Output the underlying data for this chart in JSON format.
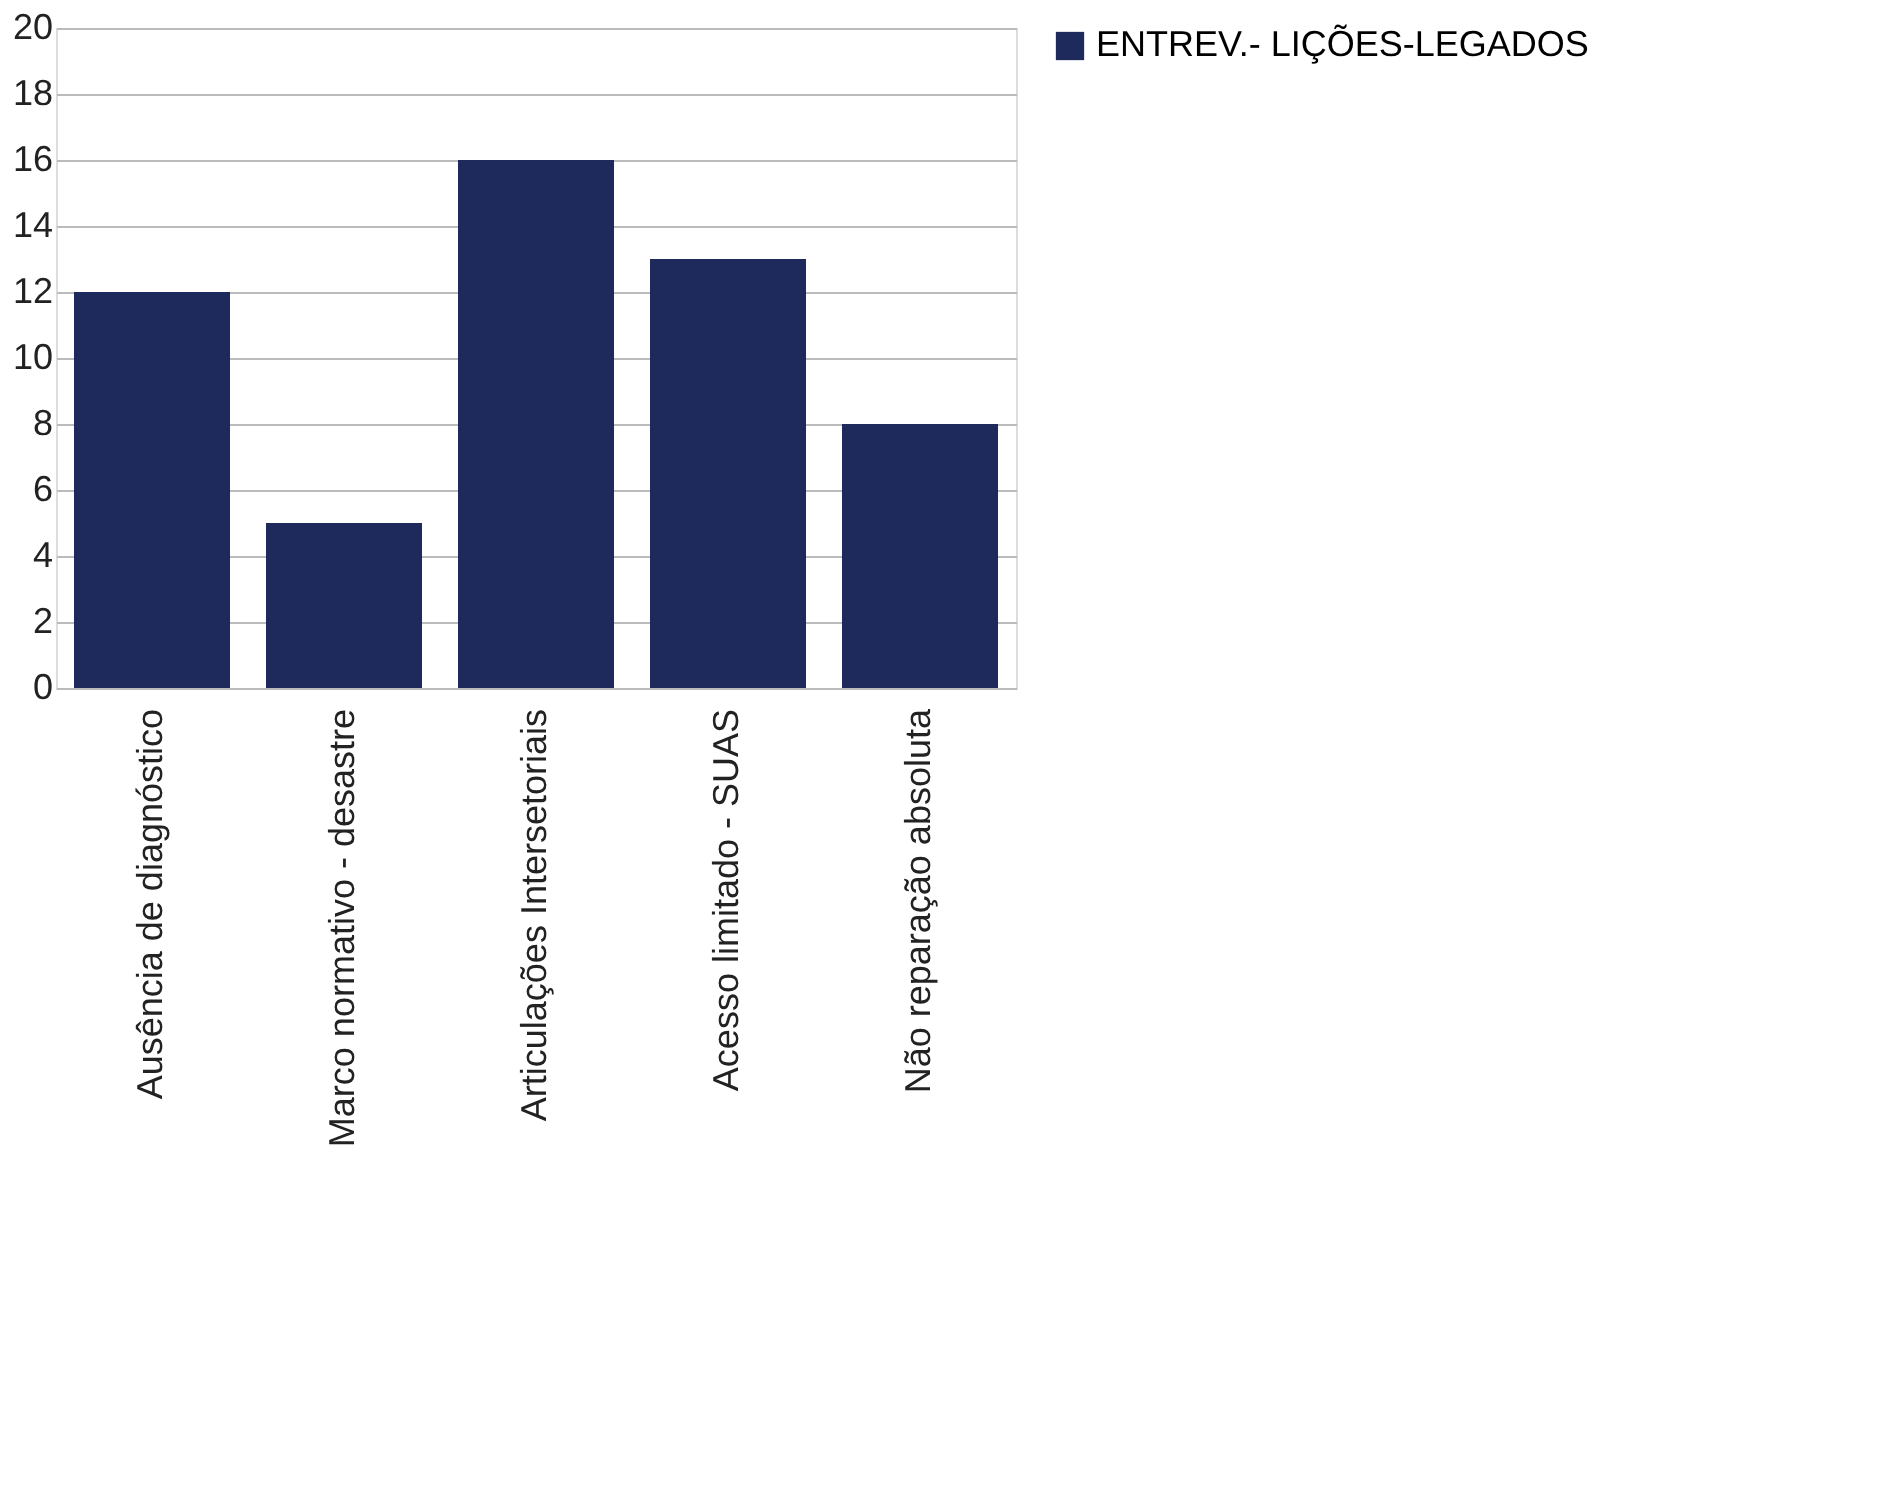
{
  "chart_data": {
    "type": "bar",
    "categories": [
      "Ausência de diagnóstico",
      "Marco normativo - desastre",
      "Articulações Intersetoriais",
      "Acesso limitado - SUAS",
      "Não reparação absoluta"
    ],
    "series": [
      {
        "name": "ENTREV.- LIÇÕES-LEGADOS",
        "color": "#1f2a5c",
        "values": [
          12,
          5,
          16,
          13,
          8
        ]
      }
    ],
    "ylim": [
      0,
      20
    ],
    "yticks": [
      0,
      2,
      4,
      6,
      8,
      10,
      12,
      14,
      16,
      18,
      20
    ],
    "grid": "y",
    "legend": "right"
  }
}
